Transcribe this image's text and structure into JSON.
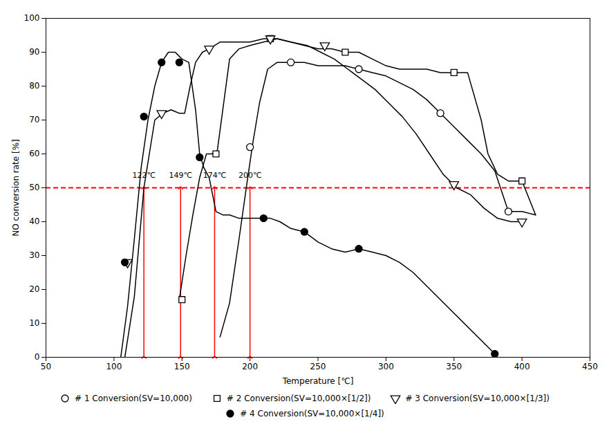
{
  "chart_data": {
    "type": "line",
    "xlabel": "Temperature [℃]",
    "ylabel": "NO conversion rate [%]",
    "xlim": [
      50,
      450
    ],
    "ylim": [
      0,
      100
    ],
    "xticks": [
      50,
      100,
      150,
      200,
      250,
      300,
      350,
      400,
      450
    ],
    "yticks": [
      0,
      10,
      20,
      30,
      40,
      50,
      60,
      70,
      80,
      90,
      100
    ],
    "grid": false,
    "legend": "bottom",
    "series": [
      {
        "name": "# 1  Conversion(SV=10,000)",
        "color": "black",
        "marker": "circle-open",
        "marker_x": [
          200,
          230,
          280,
          340,
          390
        ],
        "marker_y": [
          62,
          87,
          85,
          72,
          43
        ],
        "curve_x": [
          178,
          185,
          192,
          198,
          202,
          207,
          213,
          220,
          230,
          240,
          250,
          260,
          270,
          280,
          290,
          300,
          310,
          320,
          330,
          340,
          350,
          360,
          370,
          380,
          390,
          400,
          410
        ],
        "curve_y": [
          6,
          16,
          35,
          52,
          63,
          75,
          85,
          87,
          87,
          87,
          86,
          86,
          86,
          85,
          84,
          83,
          81,
          79,
          76,
          72,
          68,
          64,
          60,
          55,
          43,
          43,
          42
        ]
      },
      {
        "name": "# 2  Conversion(SV=10,000×[1/2])",
        "color": "black",
        "marker": "square-open",
        "marker_x": [
          150,
          175,
          215,
          270,
          350,
          400
        ],
        "marker_y": [
          17,
          60,
          94,
          90,
          84,
          52
        ],
        "curve_x": [
          148,
          153,
          158,
          163,
          168,
          172,
          176,
          180,
          185,
          192,
          200,
          210,
          220,
          230,
          240,
          250,
          260,
          270,
          280,
          290,
          300,
          310,
          320,
          330,
          340,
          350,
          360,
          370,
          375,
          382,
          390,
          400,
          410
        ],
        "curve_y": [
          17,
          30,
          42,
          53,
          60,
          60,
          61,
          73,
          88,
          91,
          92,
          93,
          94,
          93,
          92,
          91,
          91,
          90,
          90,
          88,
          86,
          85,
          85,
          85,
          84,
          84,
          84,
          70,
          60,
          54,
          52,
          52,
          42
        ]
      },
      {
        "name": "# 3  Conversion(SV=10,000×[1/3])",
        "color": "black",
        "marker": "triangle-down-open",
        "marker_x": [
          110,
          135,
          170,
          215,
          255,
          350,
          400
        ],
        "marker_y": [
          28,
          72,
          91,
          94,
          92,
          51,
          40
        ],
        "curve_x": [
          108,
          115,
          122,
          130,
          136,
          142,
          148,
          152,
          156,
          160,
          165,
          170,
          178,
          185,
          193,
          200,
          210,
          220,
          230,
          242,
          252,
          262,
          272,
          282,
          292,
          302,
          312,
          322,
          332,
          342,
          352,
          362,
          372,
          382,
          392,
          402
        ],
        "curve_y": [
          0,
          18,
          50,
          70,
          72,
          73,
          72,
          72,
          80,
          87,
          90,
          91,
          93,
          93,
          93,
          93,
          94,
          94,
          93,
          92,
          90,
          88,
          85,
          82,
          79,
          75,
          71,
          66,
          60,
          54,
          50,
          48,
          44,
          41,
          40,
          40
        ]
      },
      {
        "name": "# 4  Conversion(SV=10,000×[1/4])",
        "color": "black",
        "marker": "circle-filled",
        "marker_x": [
          108,
          122,
          135,
          148,
          163,
          210,
          240,
          280,
          380
        ],
        "marker_y": [
          28,
          71,
          87,
          87,
          59,
          41,
          37,
          32,
          1
        ],
        "curve_x": [
          105,
          110,
          115,
          120,
          125,
          130,
          135,
          140,
          145,
          150,
          155,
          160,
          163,
          166,
          170,
          175,
          180,
          185,
          192,
          200,
          208,
          215,
          222,
          230,
          240,
          250,
          260,
          270,
          280,
          290,
          300,
          310,
          320,
          380
        ],
        "curve_y": [
          0,
          15,
          35,
          56,
          70,
          80,
          87,
          90,
          90,
          88,
          87,
          73,
          60,
          56,
          53,
          43,
          42,
          42,
          41,
          41,
          41,
          41,
          40,
          38,
          37,
          34,
          32,
          31,
          32,
          31,
          30,
          28,
          25,
          1
        ]
      }
    ],
    "reference_line": {
      "y": 50,
      "color": "red",
      "line_style": "dashed"
    },
    "annotations": {
      "color": "red",
      "y_from": 0,
      "y_to": 50,
      "label_y": 53,
      "x": [
        122,
        149,
        174,
        200
      ],
      "labels": [
        "122℃",
        "149℃",
        "174℃",
        "200℃"
      ]
    }
  }
}
